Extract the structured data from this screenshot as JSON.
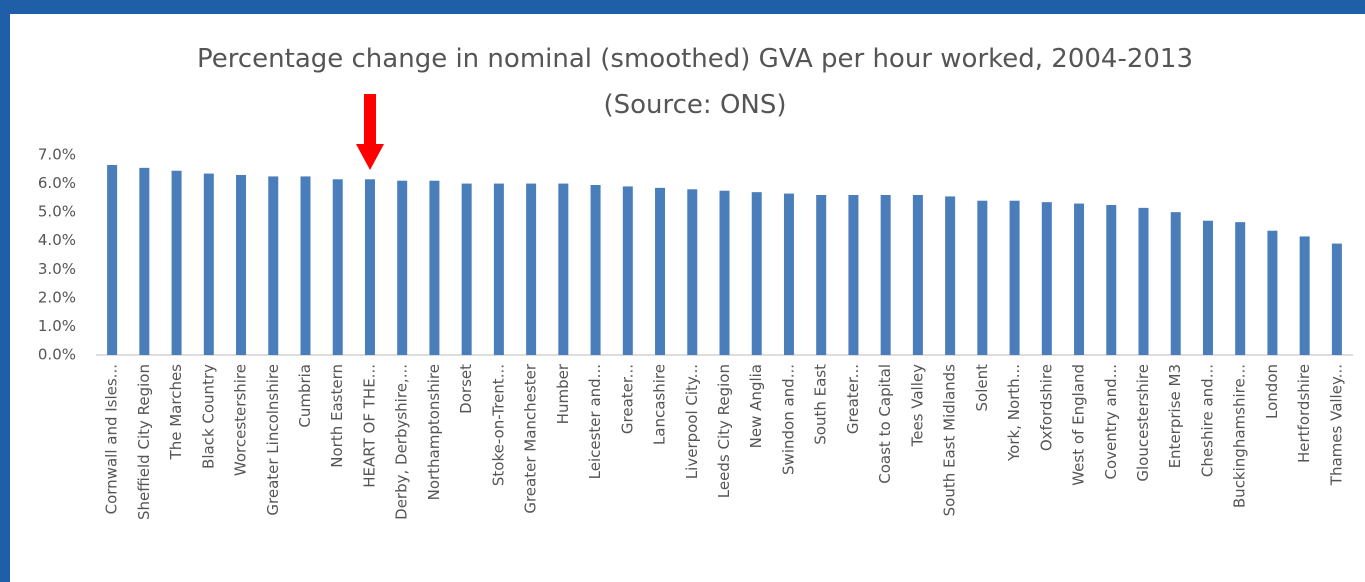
{
  "chart_data": {
    "type": "bar",
    "title": "Percentage change in nominal (smoothed) GVA per hour worked, 2004-2013 (Source: ONS)",
    "categories": [
      "Cornwall and Isles...",
      "Sheffield City Region",
      "The Marches",
      "Black Country",
      "Worcestershire",
      "Greater Lincolnshire",
      "Cumbria",
      "North Eastern",
      "HEART OF THE...",
      "Derby, Derbyshire,...",
      "Northamptonshire",
      "Dorset",
      "Stoke-on-Trent...",
      "Greater Manchester",
      "Humber",
      "Leicester and...",
      "Greater...",
      "Lancashire",
      "Liverpool City...",
      "Leeds City Region",
      "New Anglia",
      "Swindon and...",
      "South East",
      "Greater...",
      "Coast to Capital",
      "Tees Valley",
      "South East Midlands",
      "Solent",
      "York, North...",
      "Oxfordshire",
      "West of England",
      "Coventry and...",
      "Gloucestershire",
      "Enterprise M3",
      "Cheshire and...",
      "Buckinghamshire...",
      "London",
      "Hertfordshire",
      "Thames Valley..."
    ],
    "values": [
      6.65,
      6.55,
      6.45,
      6.35,
      6.3,
      6.25,
      6.25,
      6.15,
      6.15,
      6.1,
      6.1,
      6.0,
      6.0,
      6.0,
      6.0,
      5.95,
      5.9,
      5.85,
      5.8,
      5.75,
      5.7,
      5.65,
      5.6,
      5.6,
      5.6,
      5.6,
      5.55,
      5.4,
      5.4,
      5.35,
      5.3,
      5.25,
      5.15,
      5.0,
      4.7,
      4.65,
      4.35,
      4.15,
      3.9
    ],
    "color": "#4a7ebb",
    "ylim": [
      0,
      7
    ],
    "yticks": [
      {
        "value": 0,
        "label": "0.0%"
      },
      {
        "value": 1,
        "label": "1.0%"
      },
      {
        "value": 2,
        "label": "2.0%"
      },
      {
        "value": 3,
        "label": "3.0%"
      },
      {
        "value": 4,
        "label": "4.0%"
      },
      {
        "value": 5,
        "label": "5.0%"
      },
      {
        "value": 6,
        "label": "6.0%"
      },
      {
        "value": 7,
        "label": "7.0%"
      }
    ],
    "grid": false
  }
}
